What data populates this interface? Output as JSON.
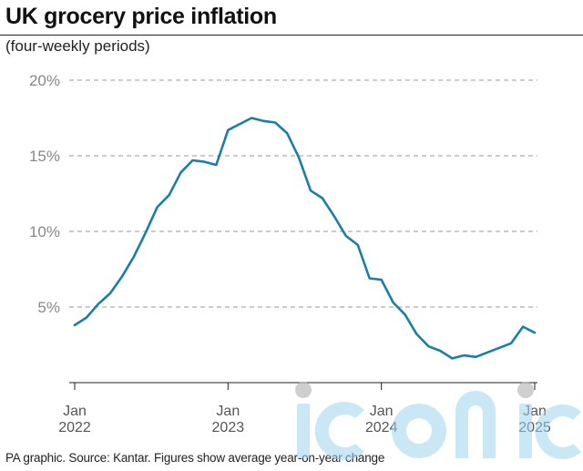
{
  "header": {
    "title": "UK grocery price inflation",
    "subtitle": "(four-weekly periods)"
  },
  "footer": {
    "source": "PA graphic. Source: Kantar. Figures show average year-on-year change"
  },
  "watermark": {
    "text": "iconic"
  },
  "colors": {
    "line": "#1a7ea8",
    "grid": "#999999",
    "tick_label": "#888888",
    "axis_label": "#555555"
  },
  "chart_data": {
    "type": "line",
    "title": "UK grocery price inflation",
    "subtitle": "(four-weekly periods)",
    "xlabel": "",
    "ylabel": "",
    "ylim": [
      0,
      20
    ],
    "yticks": [
      {
        "value": 5,
        "label": "5%"
      },
      {
        "value": 10,
        "label": "10%"
      },
      {
        "value": 15,
        "label": "15%"
      },
      {
        "value": 20,
        "label": "20%"
      }
    ],
    "xticks": [
      {
        "index": 0,
        "month": "Jan",
        "year": "2022"
      },
      {
        "index": 13,
        "month": "Jan",
        "year": "2023"
      },
      {
        "index": 26,
        "month": "Jan",
        "year": "2024"
      },
      {
        "index": 39,
        "month": "Jan",
        "year": "2025"
      }
    ],
    "grid": "horizontal-dashed",
    "legend": "none",
    "series": [
      {
        "values": [
          3.8,
          4.3,
          5.2,
          5.9,
          7.0,
          8.3,
          9.9,
          11.6,
          12.4,
          13.9,
          14.7,
          14.6,
          14.4,
          16.7,
          17.1,
          17.5,
          17.3,
          17.2,
          16.5,
          14.9,
          12.7,
          12.2,
          11.0,
          9.7,
          9.1,
          6.9,
          6.8,
          5.3,
          4.5,
          3.2,
          2.4,
          2.1,
          1.6,
          1.8,
          1.7,
          2.0,
          2.3,
          2.6,
          3.7,
          3.3
        ]
      }
    ]
  }
}
